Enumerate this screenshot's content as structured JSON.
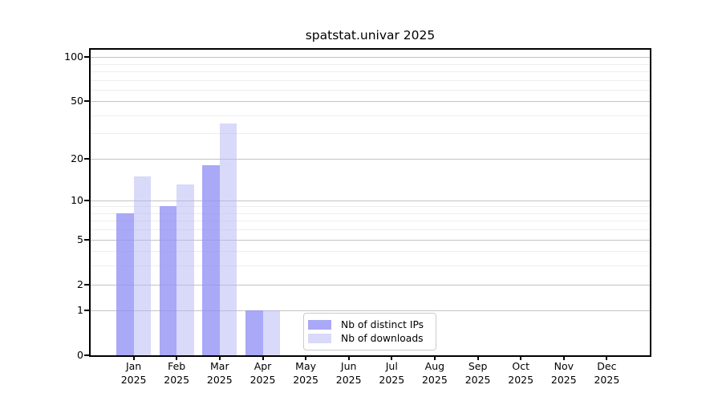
{
  "chart_data": {
    "type": "bar",
    "title": "spatstat.univar 2025",
    "x_year": "2025",
    "categories": [
      "Jan",
      "Feb",
      "Mar",
      "Apr",
      "May",
      "Jun",
      "Jul",
      "Aug",
      "Sep",
      "Oct",
      "Nov",
      "Dec"
    ],
    "series": [
      {
        "name": "Nb of distinct IPs",
        "color": "#9191f5",
        "opacity": 0.78,
        "values": [
          8,
          9,
          18,
          1,
          0,
          0,
          0,
          0,
          0,
          0,
          0,
          0
        ]
      },
      {
        "name": "Nb of downloads",
        "color": "#b3b3f3",
        "opacity": 0.5,
        "values": [
          15,
          13,
          35,
          1,
          0,
          0,
          0,
          0,
          0,
          0,
          0,
          0
        ]
      }
    ],
    "yscale": "log1p",
    "ylim": [
      0,
      112
    ],
    "yticks": [
      0,
      1,
      2,
      5,
      10,
      20,
      50,
      100
    ],
    "yticks_minor": [
      3,
      4,
      6,
      7,
      8,
      9,
      30,
      40,
      60,
      70,
      80,
      90
    ],
    "grid": true,
    "legend_position": "lower center",
    "colors": {
      "axis": "#000000",
      "grid_major": "#c3c3c3",
      "grid_minor": "#ededed",
      "background": "#ffffff"
    }
  }
}
